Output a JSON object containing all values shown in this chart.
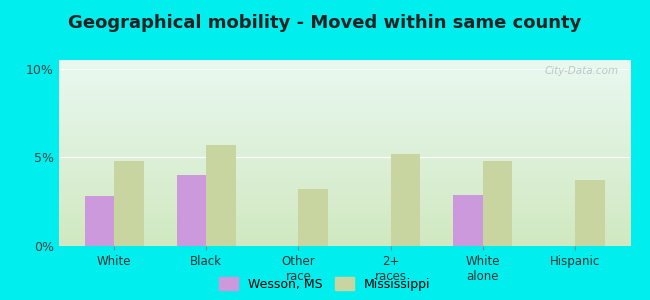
{
  "title": "Geographical mobility - Moved within same county",
  "categories": [
    "White",
    "Black",
    "Other\nrace",
    "2+\nraces",
    "White\nalone",
    "Hispanic"
  ],
  "wesson_values": [
    2.8,
    4.0,
    0,
    0,
    2.9,
    0
  ],
  "mississippi_values": [
    4.8,
    5.7,
    3.2,
    5.2,
    4.8,
    3.7
  ],
  "wesson_color": "#cc99dd",
  "mississippi_color": "#c8d5a0",
  "bar_width": 0.32,
  "ylim": [
    0,
    10.5
  ],
  "yticks": [
    0,
    5,
    10
  ],
  "ytick_labels": [
    "0%",
    "5%",
    "10%"
  ],
  "legend_labels": [
    "Wesson, MS",
    "Mississippi"
  ],
  "outer_bg": "#00eeee",
  "grad_top": "#e8f8f0",
  "grad_bottom": "#d0e8c0",
  "title_fontsize": 13,
  "watermark": "City-Data.com"
}
